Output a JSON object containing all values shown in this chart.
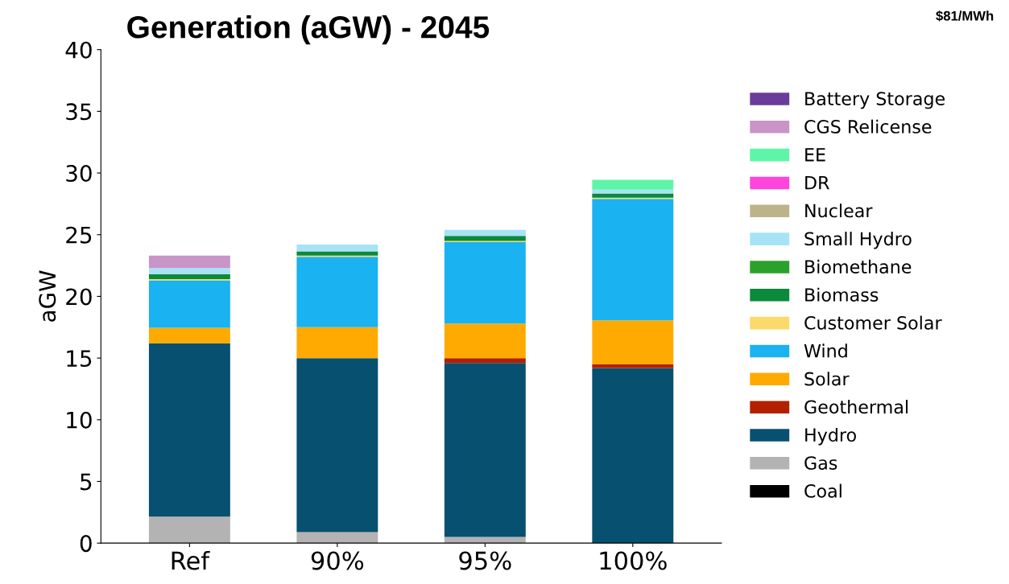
{
  "chart_data": {
    "type": "bar",
    "title": "Generation (aGW) - 2045",
    "ylabel": "aGW",
    "annotations": [
      "$81/MWh"
    ],
    "categories": [
      "Ref",
      "90%",
      "95%",
      "100%"
    ],
    "stacked": true,
    "ylim": [
      0,
      40
    ],
    "yticks": [
      0,
      5,
      10,
      15,
      20,
      25,
      30,
      35,
      40
    ],
    "grid": false,
    "legend": "right",
    "series": [
      {
        "name": "Coal",
        "color": "#000000",
        "values": [
          0,
          0,
          0,
          0
        ]
      },
      {
        "name": "Gas",
        "color": "#b3b3b3",
        "values": [
          2.15,
          0.9,
          0.5,
          0
        ]
      },
      {
        "name": "Hydro",
        "color": "#07506f",
        "values": [
          14.05,
          14.1,
          14.1,
          14.2
        ]
      },
      {
        "name": "Geothermal",
        "color": "#b22000",
        "values": [
          0,
          0,
          0.4,
          0.3
        ]
      },
      {
        "name": "Solar",
        "color": "#ffaa00",
        "values": [
          1.25,
          2.5,
          2.8,
          3.55
        ]
      },
      {
        "name": "Wind",
        "color": "#1ab2f0",
        "values": [
          3.85,
          5.7,
          6.6,
          9.85
        ]
      },
      {
        "name": "Customer Solar",
        "color": "#fcd96b",
        "values": [
          0.1,
          0.1,
          0.1,
          0.1
        ]
      },
      {
        "name": "Biomass",
        "color": "#0a8a3a",
        "values": [
          0.4,
          0.35,
          0.4,
          0.35
        ]
      },
      {
        "name": "Biomethane",
        "color": "#2ca02c",
        "values": [
          0,
          0,
          0,
          0
        ]
      },
      {
        "name": "Small Hydro",
        "color": "#a6e3f7",
        "values": [
          0.5,
          0.55,
          0.5,
          0.3
        ]
      },
      {
        "name": "Nuclear",
        "color": "#bdb38b",
        "values": [
          0,
          0,
          0,
          0
        ]
      },
      {
        "name": "DR",
        "color": "#ff44dd",
        "values": [
          0,
          0,
          0,
          0
        ]
      },
      {
        "name": "EE",
        "color": "#5ef5a8",
        "values": [
          0,
          0,
          0,
          0.8
        ]
      },
      {
        "name": "CGS Relicense",
        "color": "#c994c7",
        "values": [
          1.0,
          0,
          0,
          0
        ]
      },
      {
        "name": "Battery Storage",
        "color": "#6a3d9a",
        "values": [
          0,
          0,
          0,
          0
        ]
      }
    ]
  }
}
